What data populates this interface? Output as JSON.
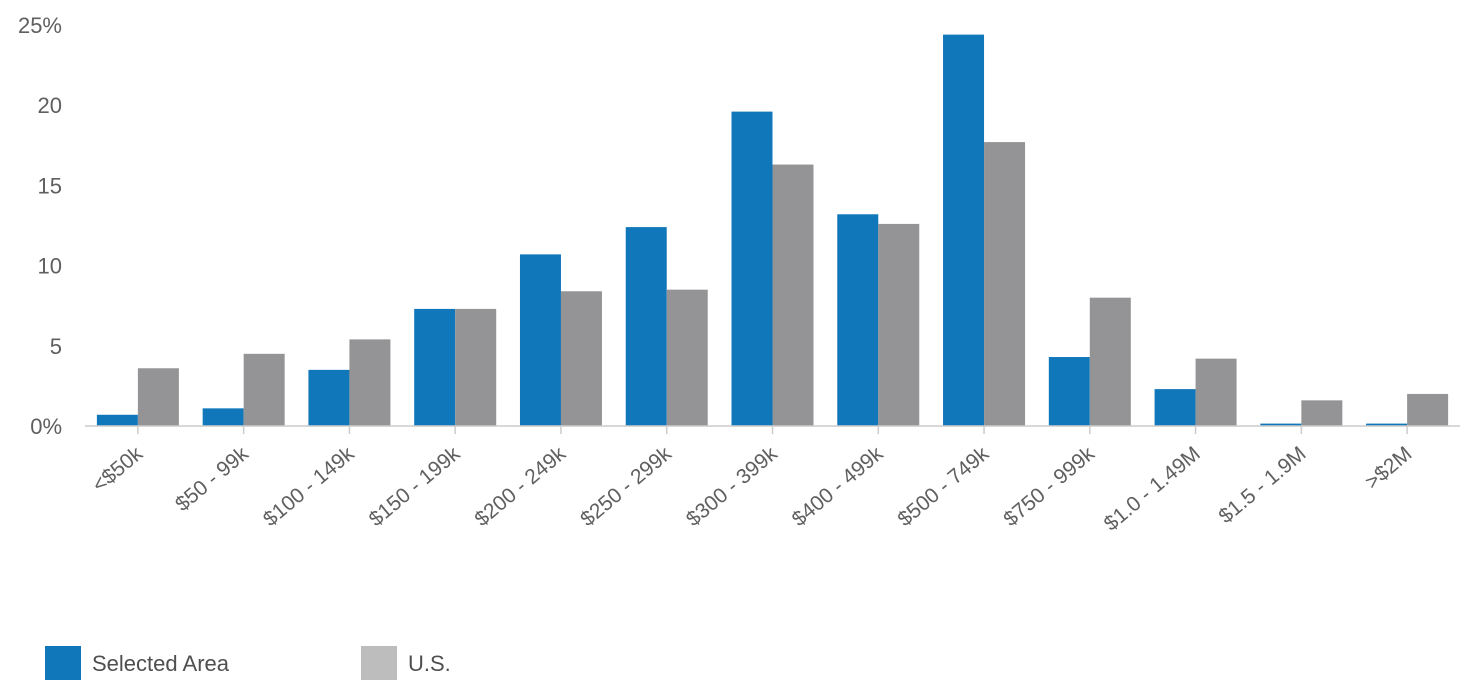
{
  "chart_data": {
    "type": "bar",
    "categories": [
      "<$50k",
      "$50 - 99k",
      "$100 - 149k",
      "$150 - 199k",
      "$200 - 249k",
      "$250 - 299k",
      "$300 - 399k",
      "$400 - 499k",
      "$500 - 749k",
      "$750 - 999k",
      "$1.0 - 1.49M",
      "$1.5 - 1.9M",
      ">$2M"
    ],
    "series": [
      {
        "name": "Selected Area",
        "color": "#1177bb",
        "values": [
          0.7,
          1.1,
          3.5,
          7.3,
          10.7,
          12.4,
          19.6,
          13.2,
          24.4,
          4.3,
          2.3,
          0.15,
          0.15
        ]
      },
      {
        "name": "U.S.",
        "color": "#949496",
        "values": [
          3.6,
          4.5,
          5.4,
          7.3,
          8.4,
          8.5,
          16.3,
          12.6,
          17.7,
          8.0,
          4.2,
          1.6,
          2.0
        ]
      }
    ],
    "y_ticks": [
      "0%",
      "5",
      "10",
      "15",
      "20",
      "25%"
    ],
    "ylim": [
      0,
      25
    ],
    "title": "",
    "xlabel": "",
    "ylabel": "",
    "grid": false,
    "legend_position": "bottom-left",
    "legend_swatch_colors": [
      "#1177bb",
      "#bdbdbd"
    ],
    "axis_color": "#cccccc"
  }
}
